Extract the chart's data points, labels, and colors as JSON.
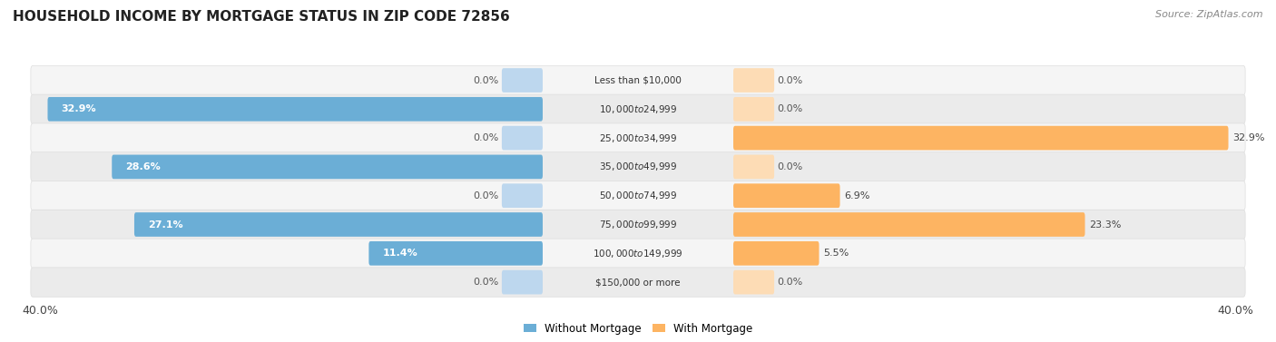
{
  "title": "HOUSEHOLD INCOME BY MORTGAGE STATUS IN ZIP CODE 72856",
  "source": "Source: ZipAtlas.com",
  "categories": [
    "Less than $10,000",
    "$10,000 to $24,999",
    "$25,000 to $34,999",
    "$35,000 to $49,999",
    "$50,000 to $74,999",
    "$75,000 to $99,999",
    "$100,000 to $149,999",
    "$150,000 or more"
  ],
  "without_mortgage": [
    0.0,
    32.9,
    0.0,
    28.6,
    0.0,
    27.1,
    11.4,
    0.0
  ],
  "with_mortgage": [
    0.0,
    0.0,
    32.9,
    0.0,
    6.9,
    23.3,
    5.5,
    0.0
  ],
  "max_val": 40.0,
  "color_without_full": "#6BAED6",
  "color_without_stub": "#BDD7EE",
  "color_with_full": "#FDB462",
  "color_with_stub": "#FDDCB5",
  "row_bg_light": "#F5F5F5",
  "row_bg_dark": "#EBEBEB",
  "row_border": "#DDDDDD",
  "title_fontsize": 11,
  "source_fontsize": 8,
  "label_fontsize": 8,
  "cat_fontsize": 7.5,
  "axis_fontsize": 9,
  "legend_fontsize": 8.5
}
